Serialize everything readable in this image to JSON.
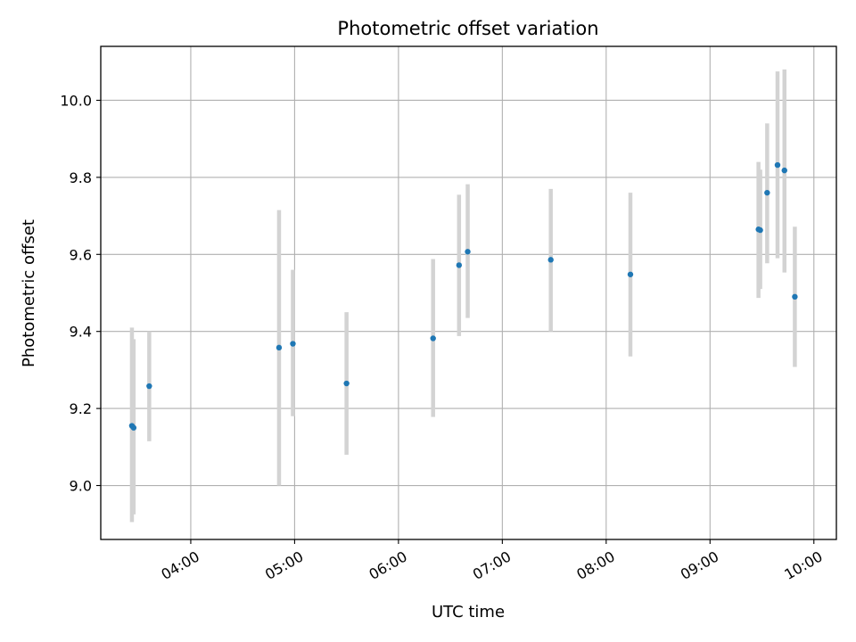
{
  "chart_data": {
    "type": "scatter",
    "title": "Photometric offset variation",
    "xlabel": "UTC time",
    "ylabel": "Photometric offset",
    "x_ticks": [
      "04:00",
      "05:00",
      "06:00",
      "07:00",
      "08:00",
      "09:00",
      "10:00"
    ],
    "y_ticks": [
      "9.0",
      "9.2",
      "9.4",
      "9.6",
      "9.8",
      "10.0"
    ],
    "xlim": [
      "03:08",
      "10:13"
    ],
    "ylim": [
      8.86,
      10.14
    ],
    "grid": true,
    "marker_color": "#1f77b4",
    "errorbar_color": "#d3d3d3",
    "points": [
      {
        "x": "03:26",
        "y": 9.155,
        "err_low": 8.905,
        "err_high": 9.41
      },
      {
        "x": "03:27",
        "y": 9.15,
        "err_low": 8.925,
        "err_high": 9.38
      },
      {
        "x": "03:36",
        "y": 9.258,
        "err_low": 9.115,
        "err_high": 9.4
      },
      {
        "x": "04:51",
        "y": 9.358,
        "err_low": 9.0,
        "err_high": 9.715
      },
      {
        "x": "04:59",
        "y": 9.368,
        "err_low": 9.18,
        "err_high": 9.56
      },
      {
        "x": "05:30",
        "y": 9.265,
        "err_low": 9.08,
        "err_high": 9.45
      },
      {
        "x": "06:20",
        "y": 9.382,
        "err_low": 9.178,
        "err_high": 9.588
      },
      {
        "x": "06:35",
        "y": 9.572,
        "err_low": 9.388,
        "err_high": 9.755
      },
      {
        "x": "06:40",
        "y": 9.607,
        "err_low": 9.435,
        "err_high": 9.782
      },
      {
        "x": "07:28",
        "y": 9.586,
        "err_low": 9.4,
        "err_high": 9.77
      },
      {
        "x": "08:14",
        "y": 9.548,
        "err_low": 9.335,
        "err_high": 9.76
      },
      {
        "x": "09:28",
        "y": 9.665,
        "err_low": 9.487,
        "err_high": 9.84
      },
      {
        "x": "09:29",
        "y": 9.663,
        "err_low": 9.51,
        "err_high": 9.82
      },
      {
        "x": "09:33",
        "y": 9.76,
        "err_low": 9.577,
        "err_high": 9.94
      },
      {
        "x": "09:39",
        "y": 9.832,
        "err_low": 9.59,
        "err_high": 10.075
      },
      {
        "x": "09:43",
        "y": 9.818,
        "err_low": 9.553,
        "err_high": 10.08
      },
      {
        "x": "09:49",
        "y": 9.49,
        "err_low": 9.308,
        "err_high": 9.672
      }
    ]
  }
}
